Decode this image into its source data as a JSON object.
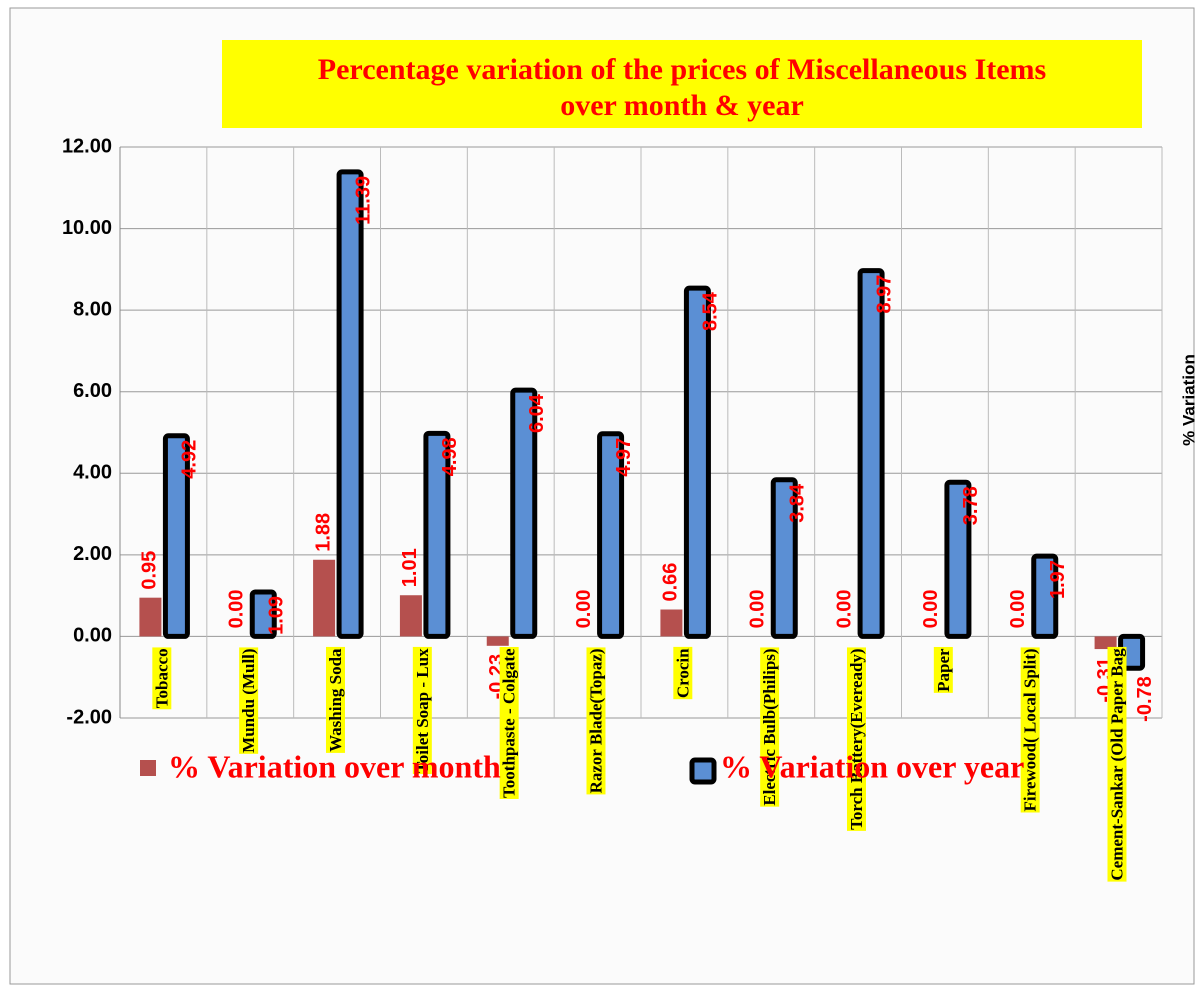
{
  "chart_data": {
    "type": "bar",
    "title": [
      "Percentage variation of the prices of Miscellaneous Items",
      "over month & year"
    ],
    "y_label": "% Variation",
    "categories": [
      "Tobacco",
      "Mundu (Mull)",
      "Washing Soda",
      "Toilet Soap - Lux",
      "Toothpaste - Colgate",
      "Razor Blade(Topaz)",
      "Crocin",
      "Electric Bulb(Philips)",
      "Torch Battery(Eveready)",
      "Paper",
      "Firewood( Local Split)",
      "Cement-Sankar (Old Paper Bag"
    ],
    "series": [
      {
        "name": "% Variation over month",
        "color": "#b5504e",
        "values": [
          0.95,
          0,
          1.88,
          1.01,
          -0.23,
          0,
          0.66,
          0,
          0,
          0,
          0,
          -0.31
        ],
        "value_labels": [
          "0.95",
          "0.00",
          "1.88",
          "1.01",
          "-0.23",
          "0.00",
          "0.66",
          "0.00",
          "0.00",
          "0.00",
          "0.00",
          "-0.31"
        ]
      },
      {
        "name": "% Variation over year",
        "color": "#5b8fd4",
        "values": [
          4.92,
          1.09,
          11.39,
          4.98,
          6.04,
          4.97,
          8.54,
          3.84,
          8.97,
          3.78,
          1.97,
          -0.78
        ],
        "value_labels": [
          "4.92",
          "1.09",
          "11.39",
          "4.98",
          "6.04",
          "4.97",
          "8.54",
          "3.84",
          "8.97",
          "3.78",
          "1.97",
          "-0.78"
        ]
      }
    ],
    "ylim": [
      -2,
      12
    ],
    "yticks": [
      {
        "value": -2,
        "label": "-2.00"
      },
      {
        "value": 0,
        "label": "0.00"
      },
      {
        "value": 2,
        "label": "2.00"
      },
      {
        "value": 4,
        "label": "4.00"
      },
      {
        "value": 6,
        "label": "6.00"
      },
      {
        "value": 8,
        "label": "8.00"
      },
      {
        "value": 10,
        "label": "10.00"
      },
      {
        "value": 12,
        "label": "12.00"
      }
    ],
    "grid": true
  }
}
